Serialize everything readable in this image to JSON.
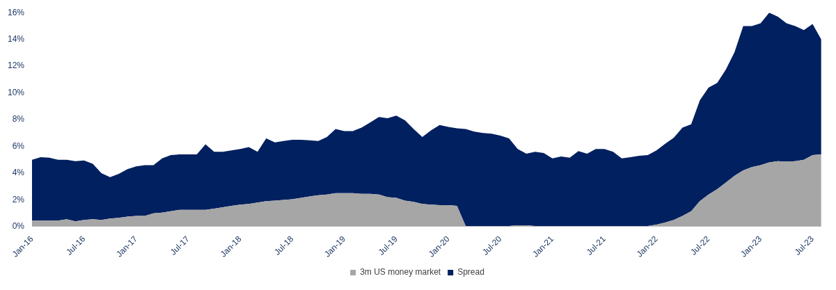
{
  "chart_data": {
    "type": "area",
    "stacked": true,
    "legend": "bottom",
    "grid": false,
    "categories": [
      "Jan-16",
      null,
      null,
      null,
      null,
      null,
      "Jul-16",
      null,
      null,
      null,
      null,
      null,
      "Jan-17",
      null,
      null,
      null,
      null,
      null,
      "Jul-17",
      null,
      null,
      null,
      null,
      null,
      "Jan-18",
      null,
      null,
      null,
      null,
      null,
      "Jul-18",
      null,
      null,
      null,
      null,
      null,
      "Jan-19",
      null,
      null,
      null,
      null,
      null,
      "Jul-19",
      null,
      null,
      null,
      null,
      null,
      "Jan-20",
      null,
      null,
      null,
      null,
      null,
      "Jul-20",
      null,
      null,
      null,
      null,
      null,
      "Jan-21",
      null,
      null,
      null,
      null,
      null,
      "Jul-21",
      null,
      null,
      null,
      null,
      null,
      "Jan-22",
      null,
      null,
      null,
      null,
      null,
      "Jul-22",
      null,
      null,
      null,
      null,
      null,
      "Jan-23",
      null,
      null,
      null,
      null,
      null,
      "Jul-23",
      null
    ],
    "ylim": [
      0,
      16
    ],
    "yticks": [
      {
        "value": 0,
        "label": "0%"
      },
      {
        "value": 2,
        "label": "2%"
      },
      {
        "value": 4,
        "label": "4%"
      },
      {
        "value": 6,
        "label": "6%"
      },
      {
        "value": 8,
        "label": "8%"
      },
      {
        "value": 10,
        "label": "10%"
      },
      {
        "value": 12,
        "label": "12%"
      },
      {
        "value": 14,
        "label": "14%"
      },
      {
        "value": 16,
        "label": "16%"
      }
    ],
    "series": [
      {
        "name": "3m US money market",
        "color": "#a6a6a6",
        "values": [
          0.45,
          0.45,
          0.45,
          0.45,
          0.55,
          0.4,
          0.5,
          0.55,
          0.5,
          0.6,
          0.65,
          0.75,
          0.8,
          0.8,
          1.0,
          1.05,
          1.15,
          1.25,
          1.25,
          1.25,
          1.25,
          1.35,
          1.45,
          1.55,
          1.65,
          1.7,
          1.8,
          1.9,
          1.95,
          2.0,
          2.05,
          2.15,
          2.25,
          2.35,
          2.4,
          2.5,
          2.5,
          2.5,
          2.45,
          2.45,
          2.4,
          2.2,
          2.15,
          1.95,
          1.85,
          1.7,
          1.65,
          1.6,
          1.6,
          1.55,
          0.05,
          0.05,
          0.05,
          0.05,
          0.05,
          0.05,
          0.1,
          0.1,
          0.05,
          0.05,
          0.05,
          0.05,
          0.05,
          0.05,
          0.05,
          0.05,
          0.05,
          0.05,
          0.05,
          0.05,
          0.05,
          0.05,
          0.15,
          0.3,
          0.5,
          0.8,
          1.15,
          1.9,
          2.4,
          2.8,
          3.3,
          3.8,
          4.2,
          4.45,
          4.6,
          4.8,
          4.9,
          4.85,
          4.9,
          5.0,
          5.35,
          5.4
        ]
      },
      {
        "name": "Spread",
        "color": "#002060",
        "values": [
          4.55,
          4.75,
          4.7,
          4.55,
          4.45,
          4.5,
          4.45,
          4.15,
          3.5,
          3.1,
          3.3,
          3.55,
          3.7,
          3.8,
          3.6,
          4.05,
          4.2,
          4.15,
          4.15,
          4.15,
          4.9,
          4.25,
          4.15,
          4.15,
          4.15,
          4.25,
          3.8,
          4.7,
          4.35,
          4.4,
          4.45,
          4.35,
          4.2,
          4.05,
          4.3,
          4.8,
          4.65,
          4.65,
          4.95,
          5.35,
          5.8,
          5.9,
          6.15,
          6.0,
          5.45,
          5.0,
          5.55,
          6.0,
          5.85,
          5.8,
          7.25,
          7.05,
          6.95,
          6.9,
          6.75,
          6.55,
          5.7,
          5.35,
          5.55,
          5.45,
          5.05,
          5.2,
          5.1,
          5.6,
          5.4,
          5.75,
          5.75,
          5.55,
          5.05,
          5.15,
          5.25,
          5.3,
          5.55,
          5.9,
          6.15,
          6.6,
          6.5,
          7.55,
          8.0,
          7.95,
          8.45,
          9.25,
          10.8,
          10.55,
          10.6,
          11.2,
          10.8,
          10.35,
          10.1,
          9.7,
          9.8,
          8.6
        ]
      }
    ]
  }
}
